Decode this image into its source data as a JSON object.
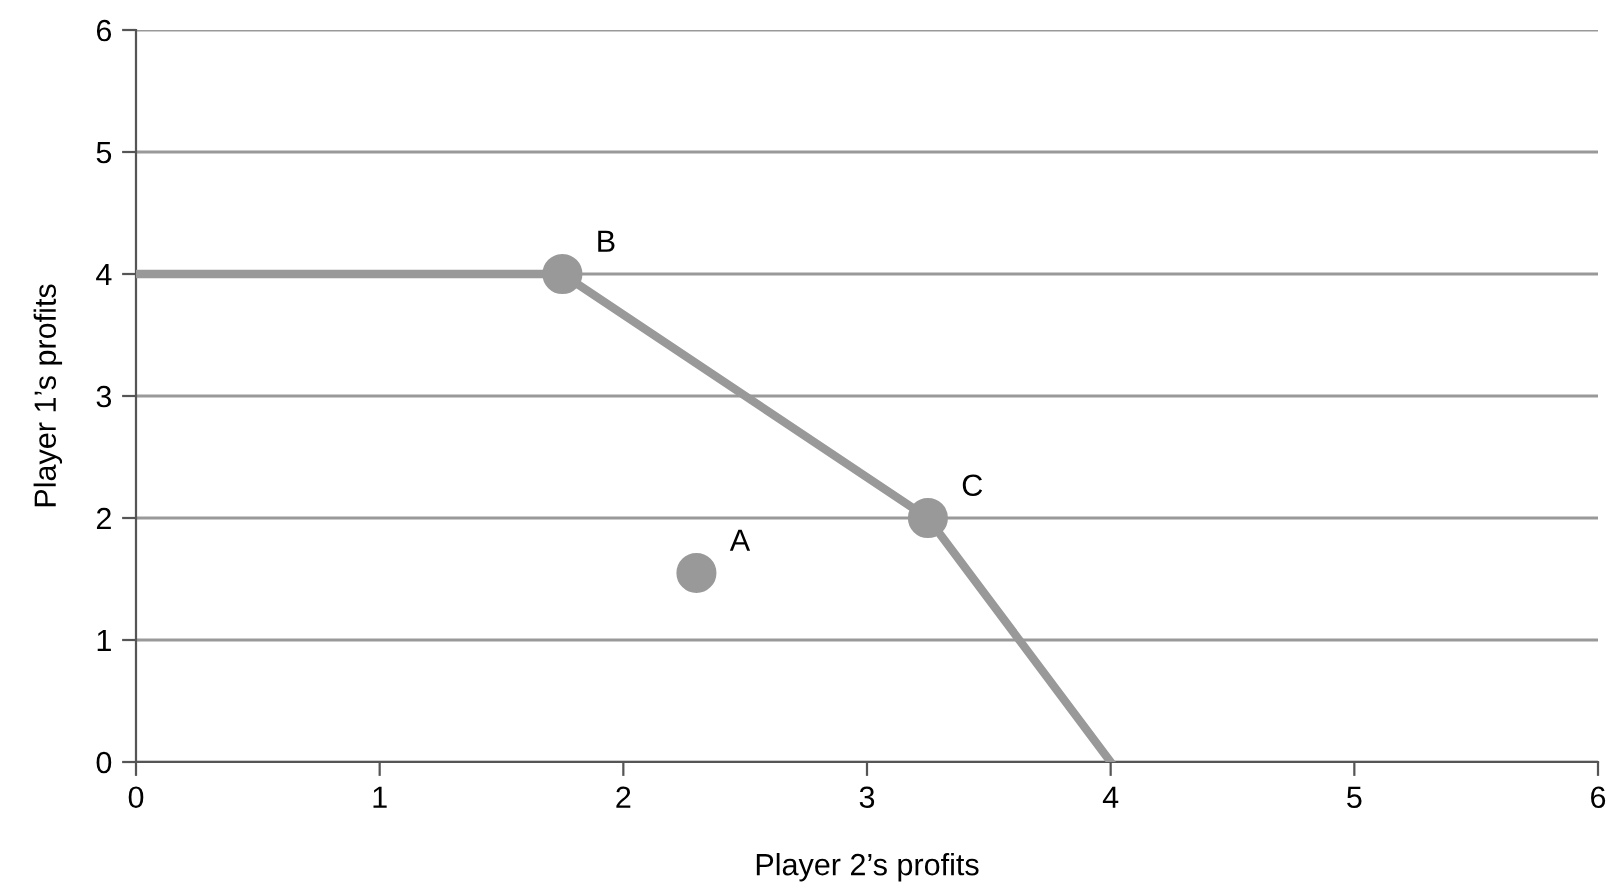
{
  "chart_data": {
    "type": "line",
    "xlabel": "Player 2’s profits",
    "ylabel": "Player 1’s profits",
    "xlim": [
      0,
      6
    ],
    "ylim": [
      0,
      6
    ],
    "xticks": [
      0,
      1,
      2,
      3,
      4,
      5,
      6
    ],
    "yticks": [
      0,
      1,
      2,
      3,
      4,
      5,
      6
    ],
    "grid": "y",
    "legend": false,
    "series": [
      {
        "x": [
          0,
          1.75,
          3.25,
          4
        ],
        "values": [
          4,
          4,
          2,
          0
        ],
        "color": "#999999",
        "marker": "none",
        "line_style": "solid"
      },
      {
        "type": "scatter",
        "x": [
          2.3,
          1.75,
          3.25
        ],
        "values": [
          1.55,
          4,
          2
        ],
        "color": "#999999",
        "marker": "circle"
      }
    ],
    "annotations": [
      {
        "text": "A",
        "x": 2.3,
        "y": 1.55
      },
      {
        "text": "B",
        "x": 1.75,
        "y": 4
      },
      {
        "text": "C",
        "x": 3.25,
        "y": 2
      }
    ]
  }
}
